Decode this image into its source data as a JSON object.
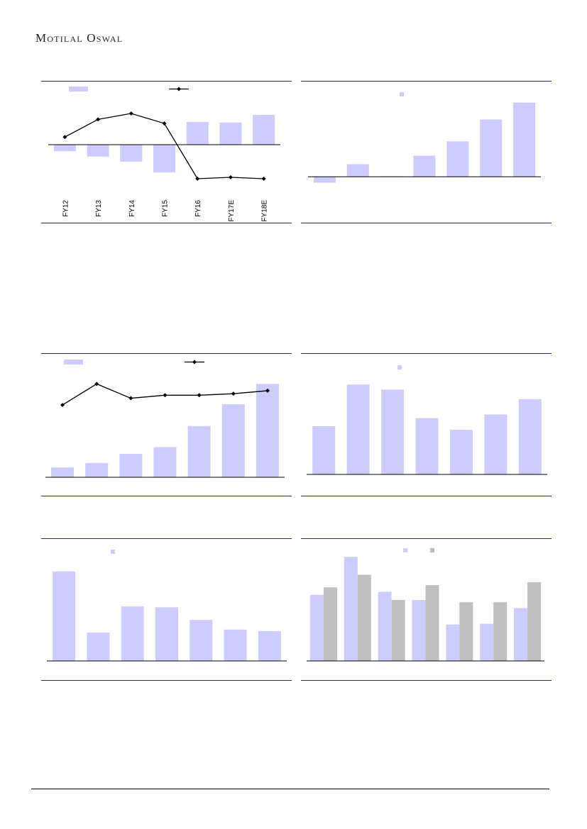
{
  "header": {
    "logo_text": "Motilal Oswal"
  },
  "colors": {
    "bar": "#ccccff",
    "bar2": "#c0c0c0",
    "line": "#000000",
    "rule": "#2a2a6e"
  },
  "charts": [
    {
      "id": "chart1",
      "chart_data": {
        "type": "bar+line",
        "categories": [
          "FY12",
          "FY13",
          "FY14",
          "FY15",
          "FY16",
          "FY17E",
          "FY18E"
        ],
        "series": [
          {
            "kind": "bar",
            "values": [
              -0.23,
              -0.42,
              -0.6,
              -0.98,
              0.8,
              0.78,
              1.05
            ]
          },
          {
            "kind": "line",
            "values": [
              0.27,
              0.89,
              1.1,
              0.75,
              -1.2,
              -1.15,
              -1.2
            ]
          }
        ],
        "ylim": [
          -1.6,
          1.6
        ],
        "grid": false
      }
    },
    {
      "id": "chart2",
      "chart_data": {
        "type": "bar",
        "categories": [
          "",
          "",
          "",
          "",
          "",
          "",
          ""
        ],
        "series": [
          {
            "values": [
              -0.35,
              0.75,
              0.03,
              1.25,
              2.1,
              3.4,
              4.4
            ]
          }
        ],
        "ylim": [
          -1,
          4.6
        ],
        "grid": false
      }
    },
    {
      "id": "chart3",
      "chart_data": {
        "type": "bar+line",
        "categories": [
          "",
          "",
          "",
          "",
          "",
          "",
          ""
        ],
        "series": [
          {
            "kind": "bar",
            "values": [
              13,
              19,
              31,
              40,
              68,
              97,
              124
            ]
          },
          {
            "kind": "line",
            "values": [
              96,
              124,
              105,
              109,
              109,
              111,
              115
            ]
          }
        ],
        "ylim": [
          0,
          130
        ],
        "grid": false
      }
    },
    {
      "id": "chart4",
      "chart_data": {
        "type": "bar",
        "categories": [
          "",
          "",
          "",
          "",
          "",
          "",
          ""
        ],
        "series": [
          {
            "values": [
              66,
              123,
              116,
              77,
              61,
              82,
              103
            ]
          }
        ],
        "ylim": [
          0,
          130
        ],
        "grid": false
      }
    },
    {
      "id": "chart5",
      "chart_data": {
        "type": "bar",
        "categories": [
          "",
          "",
          "",
          "",
          "",
          "",
          ""
        ],
        "series": [
          {
            "values": [
              120,
              38,
              73,
              72,
              55,
              42,
              40
            ]
          }
        ],
        "ylim": [
          0,
          135
        ],
        "grid": false
      }
    },
    {
      "id": "chart6",
      "chart_data": {
        "type": "bar",
        "categories": [
          "",
          "",
          "",
          "",
          "",
          "",
          ""
        ],
        "series": [
          {
            "values": [
              89,
              140,
              93,
              82,
              49,
              50,
              71
            ]
          },
          {
            "values": [
              99,
              116,
              82,
              102,
              79,
              79,
              106
            ]
          }
        ],
        "ylim": [
          0,
          145
        ],
        "grid": false
      }
    }
  ]
}
